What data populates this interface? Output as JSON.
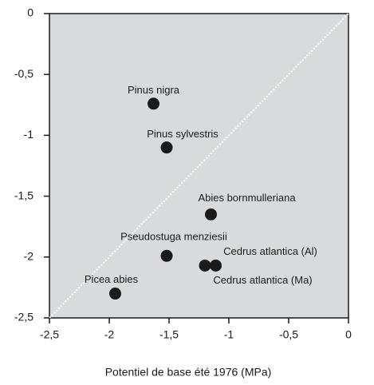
{
  "chart_data": {
    "type": "scatter",
    "x_label": "Potentiel de base été 1976 (MPa)",
    "labels": [
      "Pinus nigra",
      "Pinus sylvestris",
      "Abies bornmulleriana",
      "Pseudostuga menziesii",
      "Cedrus atlantica (Al)",
      "Cedrus atlantica (Ma)",
      "Picea abies"
    ],
    "x": [
      -1.63,
      -1.52,
      -1.15,
      -1.52,
      -1.2,
      -1.11,
      -1.95
    ],
    "values": [
      -0.74,
      -1.1,
      -1.65,
      -1.99,
      -2.07,
      -2.07,
      -2.3
    ],
    "color": "#1a1a1a",
    "xlim": [
      -2.5,
      0
    ],
    "ylim": [
      -2.5,
      0
    ],
    "xticks": [
      {
        "value": -2.5,
        "label": "-2,5"
      },
      -2,
      {
        "value": -1.5,
        "label": "-1,5"
      },
      -1,
      {
        "value": -0.5,
        "label": "-0,5"
      },
      0
    ],
    "yticks": [
      {
        "value": -2.5,
        "label": "-2,5"
      },
      -2,
      {
        "value": -1.5,
        "label": "-1,5"
      },
      -1,
      {
        "value": -0.5,
        "label": "-0,5"
      },
      0
    ],
    "background": "#d9dadb"
  }
}
